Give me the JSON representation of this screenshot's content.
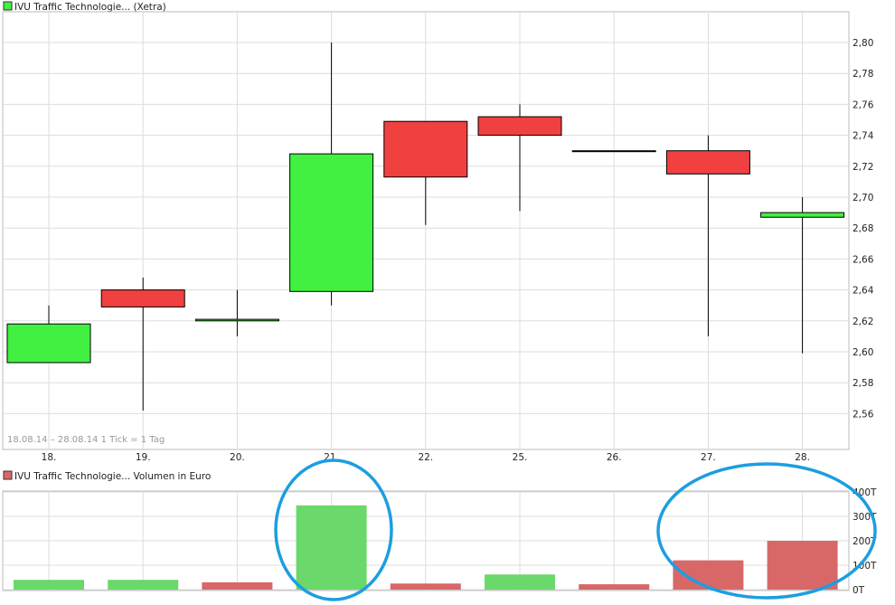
{
  "colors": {
    "up": "#42f042",
    "down": "#f04040",
    "volume_up": "#6ad86a",
    "volume_down": "#d86868",
    "grid": "#dddddd",
    "frame": "#bbbbbb",
    "text": "#222222",
    "muted": "#999999",
    "annotation": "#1c9ee0"
  },
  "chart_data": [
    {
      "type": "candlestick",
      "title": "IVU Traffic Technologie... (Xetra)",
      "legend_icon": "green-square-icon",
      "info": "18.08.14 – 28.08.14   1 Tick = 1 Tag",
      "categories": [
        "18.",
        "19.",
        "20.",
        "21.",
        "22.",
        "25.",
        "26.",
        "27.",
        "28."
      ],
      "ohlc": [
        {
          "open": 2.593,
          "high": 2.63,
          "low": 2.593,
          "close": 2.618
        },
        {
          "open": 2.64,
          "high": 2.648,
          "low": 2.562,
          "close": 2.629
        },
        {
          "open": 2.62,
          "high": 2.64,
          "low": 2.61,
          "close": 2.621
        },
        {
          "open": 2.639,
          "high": 2.8,
          "low": 2.63,
          "close": 2.728
        },
        {
          "open": 2.749,
          "high": 2.749,
          "low": 2.682,
          "close": 2.713
        },
        {
          "open": 2.752,
          "high": 2.76,
          "low": 2.691,
          "close": 2.74
        },
        {
          "open": 2.73,
          "high": 2.73,
          "low": 2.73,
          "close": 2.73
        },
        {
          "open": 2.73,
          "high": 2.74,
          "low": 2.61,
          "close": 2.715
        },
        {
          "open": 2.687,
          "high": 2.7,
          "low": 2.599,
          "close": 2.69
        }
      ],
      "ylim": [
        2.54,
        2.81
      ],
      "yticks": [
        "2,56",
        "2,58",
        "2,60",
        "2,62",
        "2,64",
        "2,66",
        "2,68",
        "2,70",
        "2,72",
        "2,74",
        "2,76",
        "2,78",
        "2,80"
      ],
      "grid": true
    },
    {
      "type": "bar",
      "title": "IVU Traffic Technologie... Volumen in Euro",
      "legend_icon": "red-square-icon",
      "categories": [
        "18.",
        "19.",
        "20.",
        "21.",
        "22.",
        "25.",
        "26.",
        "27.",
        "28."
      ],
      "values": [
        40,
        40,
        30,
        345,
        25,
        62,
        22,
        120,
        200
      ],
      "direction": [
        "up",
        "up",
        "down",
        "up",
        "down",
        "up",
        "down",
        "down",
        "down"
      ],
      "ylim": [
        0,
        400
      ],
      "yticks": [
        "0T",
        "100T",
        "200T",
        "300T",
        "400T"
      ],
      "grid": true
    }
  ]
}
